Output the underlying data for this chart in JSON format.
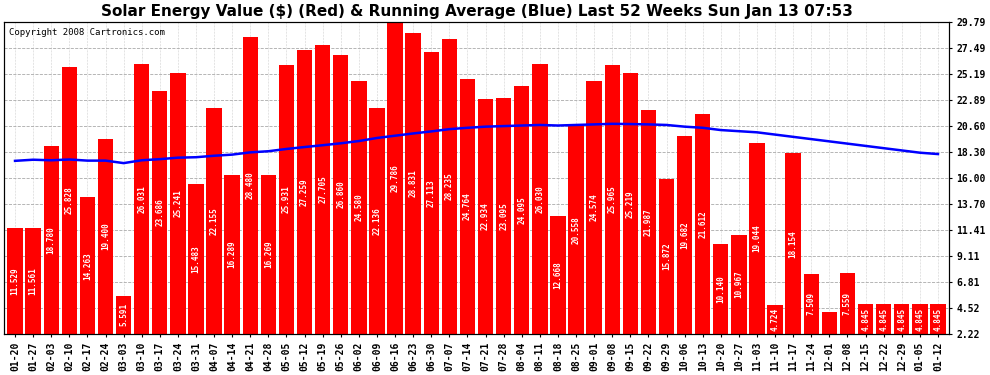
{
  "title": "Solar Energy Value ($) (Red) & Running Average (Blue) Last 52 Weeks Sun Jan 13 07:53",
  "copyright": "Copyright 2008 Cartronics.com",
  "bar_color": "#ff0000",
  "line_color": "#0000ff",
  "background_color": "#ffffff",
  "plot_bg_color": "#ffffff",
  "categories": [
    "01-20",
    "01-27",
    "02-03",
    "02-10",
    "02-17",
    "02-24",
    "03-03",
    "03-10",
    "03-17",
    "03-24",
    "03-31",
    "04-07",
    "04-14",
    "04-21",
    "04-28",
    "05-05",
    "05-12",
    "05-19",
    "05-26",
    "06-02",
    "06-09",
    "06-16",
    "06-23",
    "06-30",
    "07-07",
    "07-14",
    "07-21",
    "07-28",
    "08-04",
    "08-11",
    "08-18",
    "08-25",
    "09-01",
    "09-08",
    "09-15",
    "09-22",
    "09-29",
    "10-06",
    "10-13",
    "10-20",
    "10-27",
    "11-03",
    "11-10",
    "11-17",
    "11-24",
    "12-01",
    "12-08",
    "12-15",
    "12-22",
    "12-29",
    "01-05",
    "01-12"
  ],
  "values": [
    11.529,
    11.561,
    18.78,
    25.828,
    14.263,
    19.4,
    5.591,
    26.031,
    23.686,
    25.241,
    15.483,
    22.155,
    16.289,
    28.48,
    16.269,
    25.931,
    27.259,
    27.705,
    26.86,
    24.58,
    22.136,
    29.786,
    28.831,
    27.113,
    28.235,
    24.764,
    22.934,
    23.095,
    24.095,
    26.03,
    12.668,
    20.558,
    24.574,
    25.965,
    25.219,
    21.987,
    15.872,
    19.682,
    21.612,
    10.14,
    10.967,
    19.044,
    4.724,
    18.154,
    7.509,
    4.154,
    7.559,
    4.845,
    4.845,
    4.845,
    4.845,
    4.845
  ],
  "running_avg": [
    17.5,
    17.6,
    17.55,
    17.62,
    17.52,
    17.52,
    17.3,
    17.55,
    17.65,
    17.78,
    17.82,
    17.95,
    18.05,
    18.25,
    18.35,
    18.55,
    18.72,
    18.88,
    19.05,
    19.25,
    19.52,
    19.72,
    19.92,
    20.1,
    20.3,
    20.42,
    20.52,
    20.57,
    20.62,
    20.67,
    20.62,
    20.67,
    20.72,
    20.77,
    20.75,
    20.72,
    20.67,
    20.52,
    20.42,
    20.22,
    20.12,
    20.02,
    19.82,
    19.62,
    19.42,
    19.22,
    19.02,
    18.82,
    18.62,
    18.42,
    18.22,
    18.1
  ],
  "yticks": [
    2.22,
    4.52,
    6.81,
    9.11,
    11.41,
    13.7,
    16.0,
    18.3,
    20.6,
    22.89,
    25.19,
    27.49,
    29.79
  ],
  "ylim_min": 2.22,
  "ylim_max": 29.79,
  "title_fontsize": 11,
  "copyright_fontsize": 6.5,
  "tick_fontsize": 7,
  "label_fontsize": 5.5,
  "bar_width": 0.85,
  "line_width": 1.8
}
